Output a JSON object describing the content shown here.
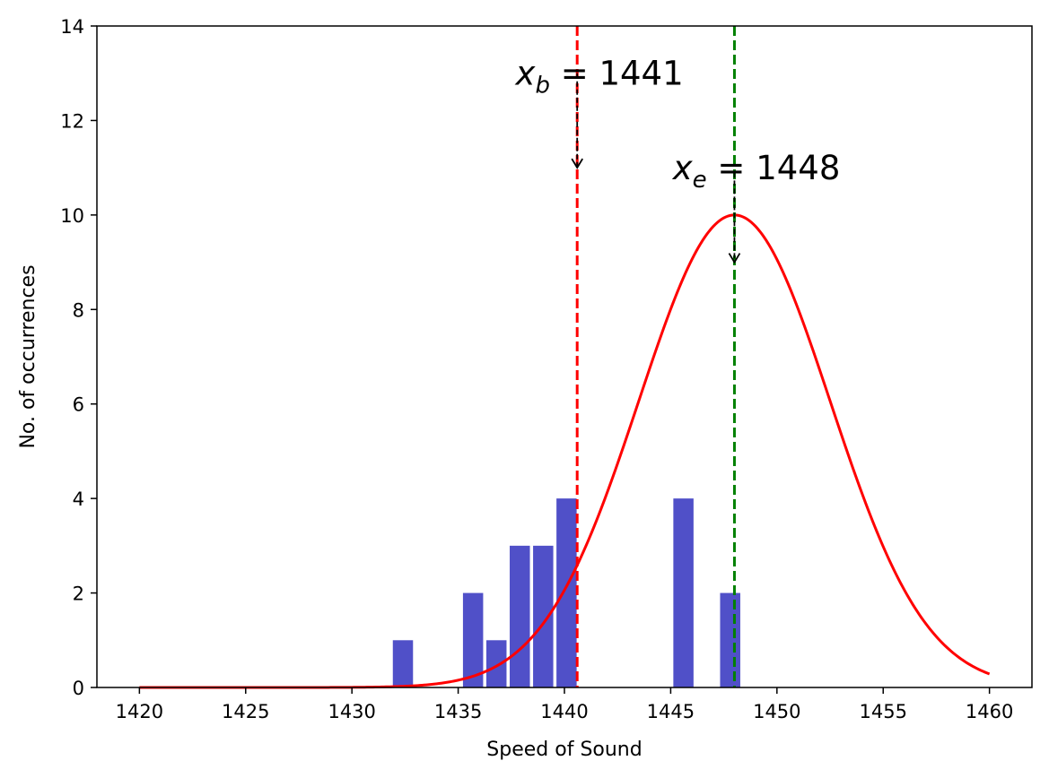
{
  "chart_data": {
    "type": "bar",
    "xlabel": "Speed of Sound",
    "ylabel": "No. of occurrences",
    "xlim": [
      1418,
      1462
    ],
    "ylim": [
      0,
      14
    ],
    "xticks": [
      1420,
      1425,
      1430,
      1435,
      1440,
      1445,
      1450,
      1455,
      1460
    ],
    "yticks": [
      0,
      2,
      4,
      6,
      8,
      10,
      12,
      14
    ],
    "grid": false,
    "bar_color": "#5050c8",
    "bars": [
      {
        "x": 1432.4,
        "value": 1
      },
      {
        "x": 1435.7,
        "value": 2
      },
      {
        "x": 1436.8,
        "value": 1
      },
      {
        "x": 1437.9,
        "value": 3
      },
      {
        "x": 1439.0,
        "value": 3
      },
      {
        "x": 1440.1,
        "value": 4
      },
      {
        "x": 1445.6,
        "value": 4
      },
      {
        "x": 1447.8,
        "value": 2
      }
    ],
    "bar_width": 0.95,
    "curve": {
      "type": "gaussian",
      "color": "#ff0000",
      "mean": 1448,
      "std": 4.5,
      "peak": 10,
      "x_range": [
        1420,
        1460
      ]
    },
    "vlines": [
      {
        "x": 1440.6,
        "color": "#ff0000",
        "style": "dashed"
      },
      {
        "x": 1448,
        "color": "#008000",
        "style": "dashed"
      }
    ],
    "annotations": [
      {
        "var": "x",
        "sub": "b",
        "eq": " =  1441",
        "text_x": 1437.7,
        "text_y": 13.0,
        "arrow_from_y": 13.0,
        "arrow_to_y": 11.0,
        "arrow_x": 1440.6
      },
      {
        "var": "x",
        "sub": "e",
        "eq": " = 1448",
        "text_x": 1445.1,
        "text_y": 11.0,
        "arrow_from_y": 10.9,
        "arrow_to_y": 9.0,
        "arrow_x": 1448
      }
    ]
  }
}
